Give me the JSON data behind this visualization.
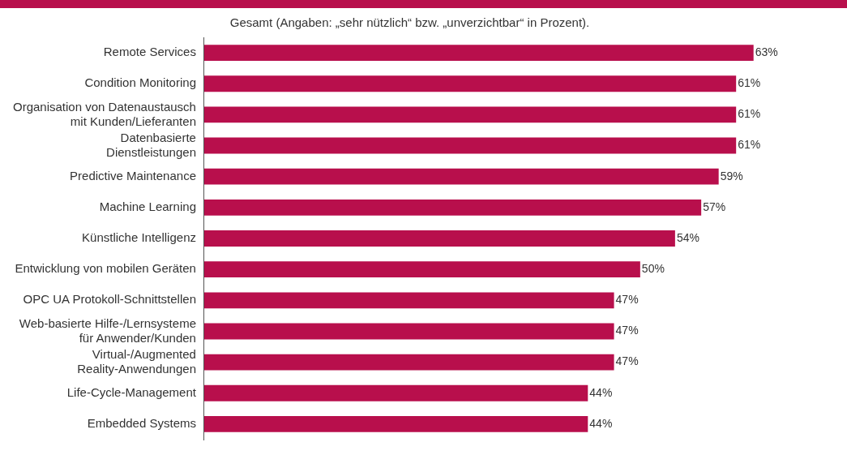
{
  "chart_data": {
    "type": "bar",
    "orientation": "horizontal",
    "title": "Gesamt (Angaben: „sehr nützlich“ bzw. „unverzichtbar“ in Prozent).",
    "categories": [
      "Remote Services",
      "Condition Monitoring",
      "Organisation von Datenaustausch\nmit Kunden/Lieferanten",
      "Datenbasierte\nDienstleistungen",
      "Predictive Maintenance",
      "Machine Learning",
      "Künstliche Intelligenz",
      "Entwicklung von mobilen Geräten",
      "OPC UA Protokoll-Schnittstellen",
      "Web-basierte Hilfe-/Lernsysteme\nfür Anwender/Kunden",
      "Virtual-/Augmented\nReality-Anwendungen",
      "Life-Cycle-Management",
      "Embedded Systems"
    ],
    "values": [
      63,
      61,
      61,
      61,
      59,
      57,
      54,
      50,
      47,
      47,
      47,
      44,
      44
    ],
    "value_labels": [
      "63%",
      "61%",
      "61%",
      "61%",
      "59%",
      "57%",
      "54%",
      "50%",
      "47%",
      "47%",
      "47%",
      "44%",
      "44%"
    ],
    "color": "#b80f4c",
    "grid": false,
    "legend": false
  }
}
